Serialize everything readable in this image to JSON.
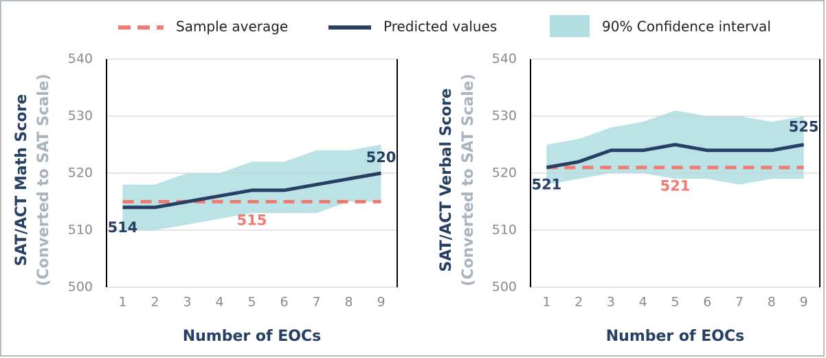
{
  "chart_data": [
    {
      "type": "line",
      "y_label": "SAT/ACT Math Score",
      "y_sublabel": "(Converted to SAT Scale)",
      "x_label": "Number of EOCs",
      "x": [
        1,
        2,
        3,
        4,
        5,
        6,
        7,
        8,
        9
      ],
      "xlim": [
        0.5,
        9.5
      ],
      "ylim": [
        500,
        540
      ],
      "yticks": [
        500,
        510,
        520,
        530,
        540
      ],
      "grid": true,
      "series": [
        {
          "name": "Sample average",
          "color": "#ef7b73",
          "dashed": true,
          "values": [
            515,
            515,
            515,
            515,
            515,
            515,
            515,
            515,
            515
          ]
        },
        {
          "name": "Predicted values",
          "color": "#263f63",
          "values": [
            514,
            514,
            515,
            516,
            517,
            517,
            518,
            519,
            520
          ]
        },
        {
          "name": "90% Confidence interval",
          "color": "#b4dfe1",
          "band": true,
          "lower": [
            510,
            510,
            511,
            512,
            513,
            513,
            513,
            515,
            515
          ],
          "upper": [
            518,
            518,
            520,
            520,
            522,
            522,
            524,
            524,
            525
          ]
        }
      ]
    },
    {
      "type": "line",
      "y_label": "SAT/ACT Verbal Score",
      "y_sublabel": "(Converted to SAT Scale)",
      "x_label": "Number of EOCs",
      "x": [
        1,
        2,
        3,
        4,
        5,
        6,
        7,
        8,
        9
      ],
      "xlim": [
        0.5,
        9.5
      ],
      "ylim": [
        500,
        540
      ],
      "yticks": [
        500,
        510,
        520,
        530,
        540
      ],
      "grid": true,
      "series": [
        {
          "color": "#ef7b73",
          "dashed": true,
          "values": [
            521,
            521,
            521,
            521,
            521,
            521,
            521,
            521,
            521
          ]
        },
        {
          "color": "#263f63",
          "values": [
            521,
            522,
            524,
            524,
            525,
            524,
            524,
            524,
            525
          ]
        },
        {
          "color": "#b4dfe1",
          "band": true,
          "lower": [
            518,
            519,
            520,
            520,
            519,
            519,
            518,
            519,
            519
          ],
          "upper": [
            525,
            526,
            528,
            529,
            531,
            530,
            530,
            529,
            530
          ]
        }
      ]
    }
  ]
}
